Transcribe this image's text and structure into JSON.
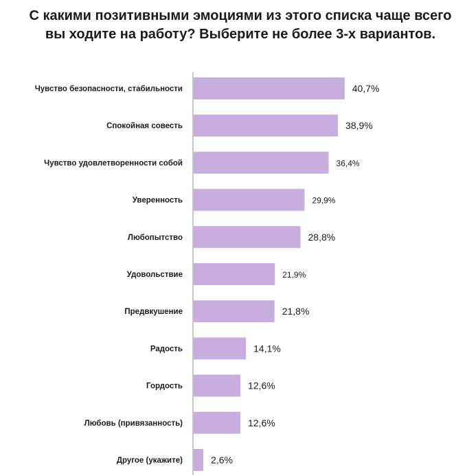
{
  "chart_data": {
    "type": "bar",
    "orientation": "horizontal",
    "title": "С какими позитивными эмоциями из этого списка чаще всего вы ходите на работу? Выберите не более 3-х вариантов.",
    "categories": [
      "Чувство безопасности, стабильности",
      "Спокойная совесть",
      "Чувство удовлетворенности собой",
      "Уверенность",
      "Любопытство",
      "Удовольствие",
      "Предвкушение",
      "Радость",
      "Гордость",
      "Любовь (привязанность)",
      "Другое (укажите)"
    ],
    "values": [
      40.7,
      38.9,
      36.4,
      29.9,
      28.8,
      21.9,
      21.8,
      14.1,
      12.6,
      12.6,
      2.6
    ],
    "data_labels": [
      "40,7%",
      "38,9%",
      "36,4%",
      "29,9%",
      "28,8%",
      "21,9%",
      "21,8%",
      "14,1%",
      "12,6%",
      "12,6%",
      "2,6%"
    ],
    "bar_color": "#c8aedf",
    "axis_color": "#8c8c8c",
    "xlim": [
      0,
      100
    ],
    "grid": false,
    "legend": "none"
  }
}
